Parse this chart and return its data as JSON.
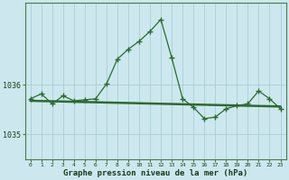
{
  "xlabel_label": "Graphe pression niveau de la mer (hPa)",
  "hours": [
    0,
    1,
    2,
    3,
    4,
    5,
    6,
    7,
    8,
    9,
    10,
    11,
    12,
    13,
    14,
    15,
    16,
    17,
    18,
    19,
    20,
    21,
    22,
    23
  ],
  "pressure": [
    1035.72,
    1035.82,
    1035.62,
    1035.78,
    1035.68,
    1035.7,
    1035.72,
    1036.02,
    1036.52,
    1036.72,
    1036.88,
    1037.08,
    1037.32,
    1036.55,
    1035.72,
    1035.55,
    1035.32,
    1035.35,
    1035.52,
    1035.58,
    1035.62,
    1035.88,
    1035.72,
    1035.52
  ],
  "trend": [
    1035.68,
    1035.675,
    1035.67,
    1035.665,
    1035.66,
    1035.655,
    1035.65,
    1035.645,
    1035.64,
    1035.635,
    1035.63,
    1035.625,
    1035.62,
    1035.615,
    1035.61,
    1035.605,
    1035.6,
    1035.595,
    1035.59,
    1035.585,
    1035.58,
    1035.575,
    1035.57,
    1035.565
  ],
  "ylim": [
    1034.75,
    1037.65
  ],
  "yticks": [
    1035.0,
    1036.0
  ],
  "line_color": "#2d6a2d",
  "bg_color": "#cce8ee",
  "grid_color": "#aacdd4",
  "label_color": "#1a3a1a",
  "border_color": "#4a7a4a",
  "tick_label_fontsize": 6,
  "xlabel_fontsize": 6.5,
  "marker": "+",
  "markersize": 4
}
